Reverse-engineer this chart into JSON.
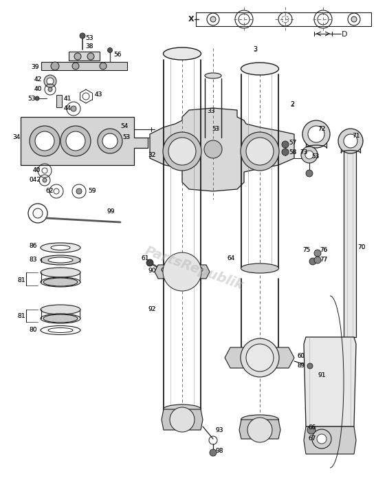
{
  "bg_color": "#ffffff",
  "watermark_text": "PartsRepublik",
  "watermark_color": "#b0b0b0",
  "watermark_alpha": 0.45,
  "lc": "#1a1a1a",
  "lw": 0.7,
  "fig_w": 5.63,
  "fig_h": 7.21,
  "dpi": 100
}
